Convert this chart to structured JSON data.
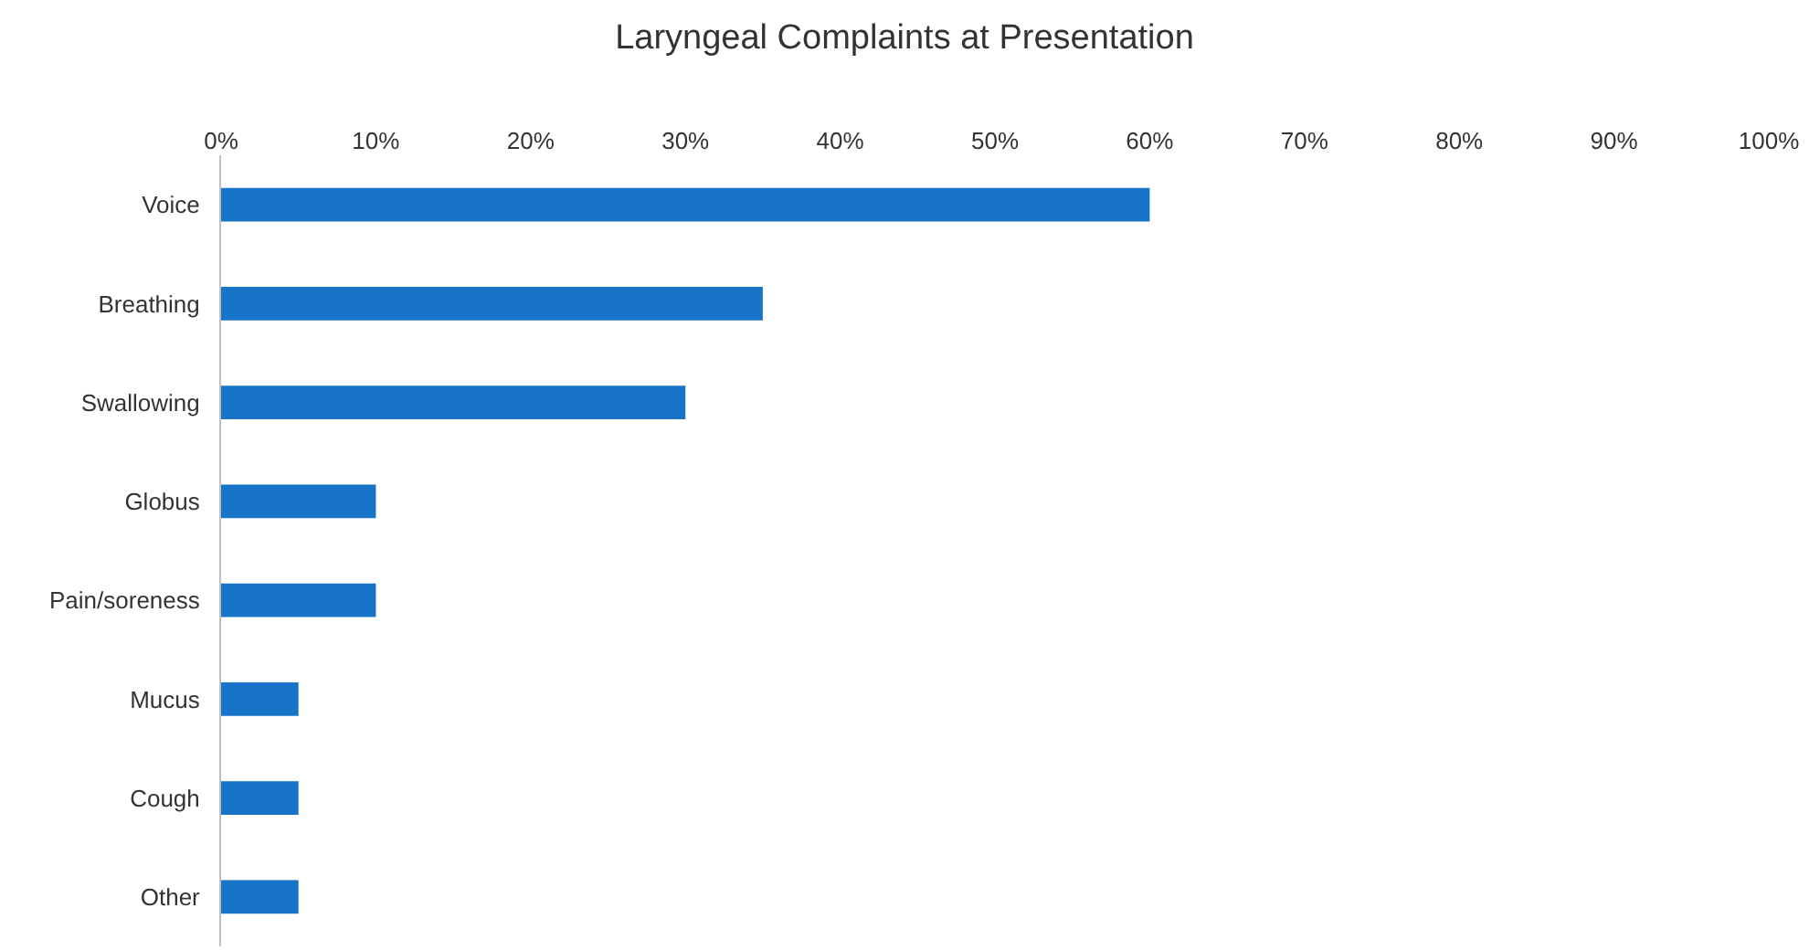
{
  "chart_data": {
    "type": "bar",
    "orientation": "horizontal",
    "title": "Laryngeal Complaints at Presentation",
    "categories": [
      "Voice",
      "Breathing",
      "Swallowing",
      "Globus",
      "Pain/soreness",
      "Mucus",
      "Cough",
      "Other"
    ],
    "values": [
      60,
      35,
      30,
      10,
      10,
      5,
      5,
      5
    ],
    "color": "#1874c8",
    "xlim": [
      0,
      100
    ],
    "xticks": [
      {
        "value": 0,
        "label": "0%"
      },
      {
        "value": 10,
        "label": "10%"
      },
      {
        "value": 20,
        "label": "20%"
      },
      {
        "value": 30,
        "label": "30%"
      },
      {
        "value": 40,
        "label": "40%"
      },
      {
        "value": 50,
        "label": "50%"
      },
      {
        "value": 60,
        "label": "60%"
      },
      {
        "value": 70,
        "label": "70%"
      },
      {
        "value": 80,
        "label": "80%"
      },
      {
        "value": 90,
        "label": "90%"
      },
      {
        "value": 100,
        "label": "100%"
      }
    ]
  }
}
